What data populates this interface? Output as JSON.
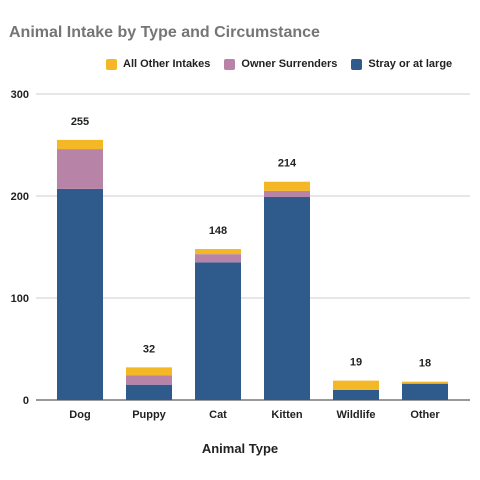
{
  "chart_data": {
    "type": "bar",
    "stacked": true,
    "title": "Animal Intake by Type and Circumstance",
    "xlabel": "Animal Type",
    "ylabel": "",
    "ylim": [
      0,
      300
    ],
    "yticks": [
      0,
      100,
      200,
      300
    ],
    "grid": true,
    "legend_position": "top",
    "categories": [
      "Dog",
      "Puppy",
      "Cat",
      "Kitten",
      "Wildlife",
      "Other"
    ],
    "series": [
      {
        "name": "Stray or at large",
        "color": "#2e5a8c",
        "values": [
          207,
          15,
          135,
          199,
          10,
          16
        ]
      },
      {
        "name": "Owner Surrenders",
        "color": "#b784a7",
        "values": [
          39,
          9,
          8,
          6,
          0,
          0
        ]
      },
      {
        "name": "All Other Intakes",
        "color": "#f4b827",
        "values": [
          9,
          8,
          5,
          9,
          9,
          2
        ]
      }
    ],
    "totals": [
      255,
      32,
      148,
      214,
      19,
      18
    ],
    "legend_order": [
      "All Other Intakes",
      "Owner Surrenders",
      "Stray or at large"
    ]
  }
}
